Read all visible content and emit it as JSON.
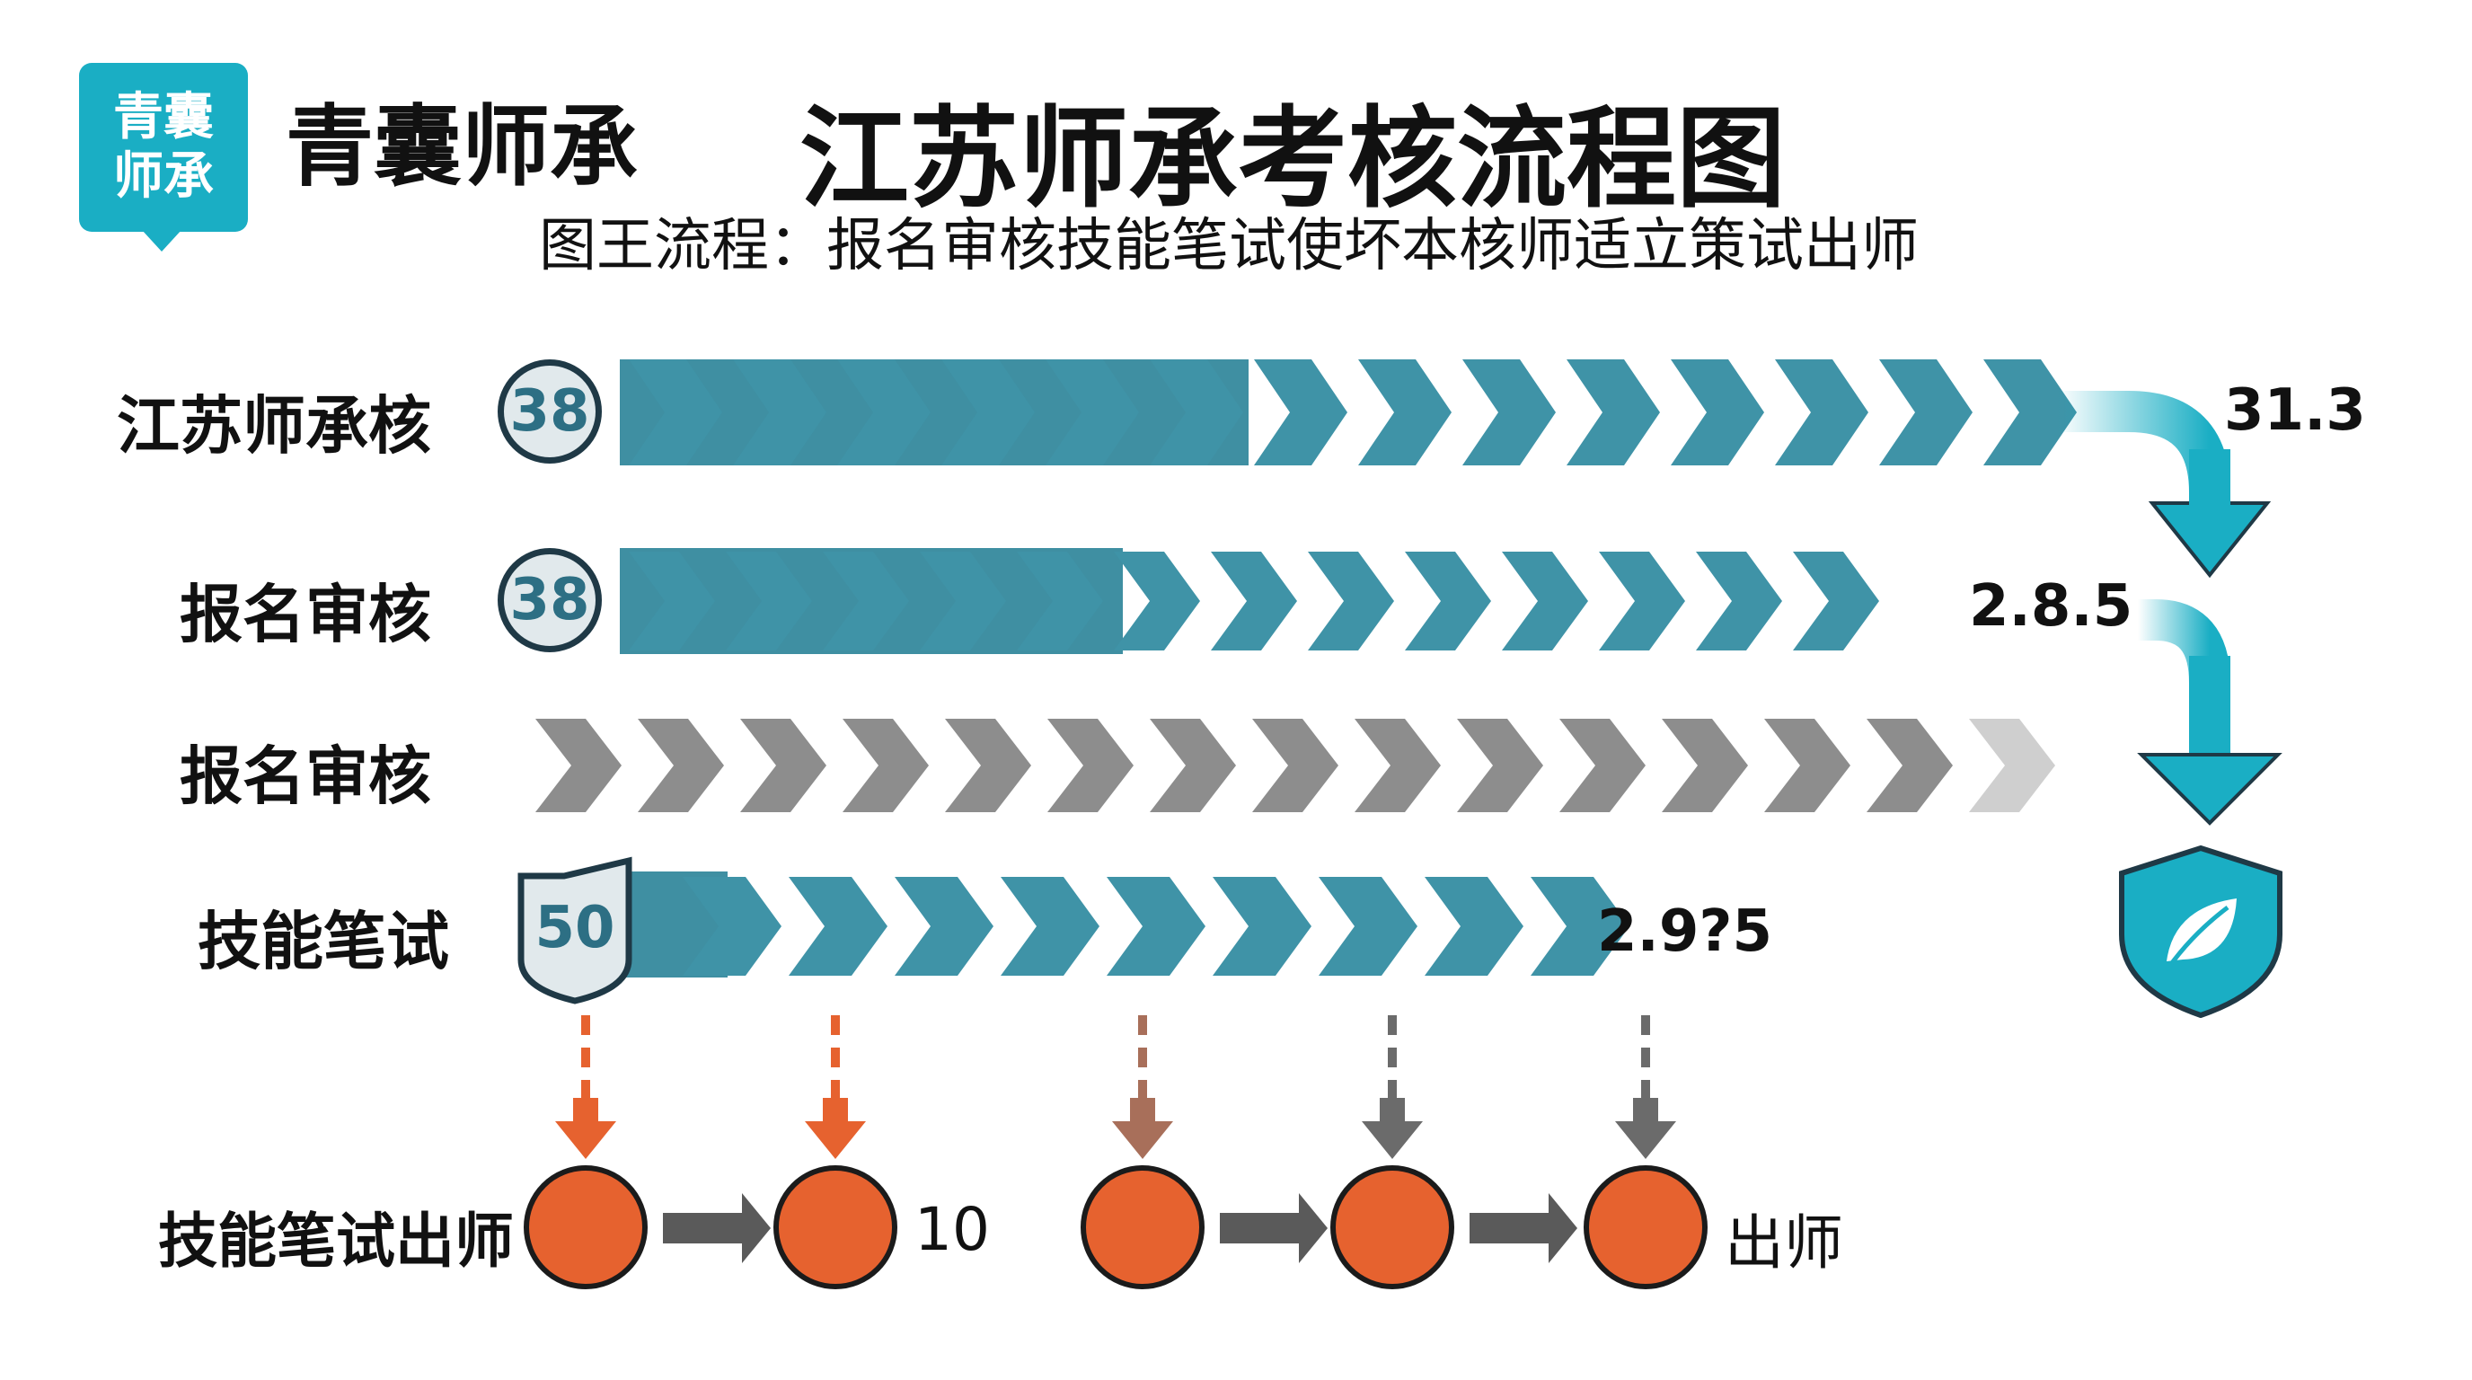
{
  "brand": {
    "logo_line1": "青囊",
    "logo_line2": "师承",
    "name": "青囊师承"
  },
  "header": {
    "title": "江苏师承考核流程图",
    "subtitle": "图王流程：报名审核技能笔试使坏本核师适立策试出师"
  },
  "rows": [
    {
      "label": "江苏师承核",
      "badge": "38",
      "value": "31.3",
      "chevrons": 14,
      "style": "teal"
    },
    {
      "label": "报名审核",
      "badge": "38",
      "value": "2.8.5",
      "chevrons": 13,
      "style": "teal"
    },
    {
      "label": "报名审核",
      "badge": "",
      "value": "",
      "chevrons": 15,
      "style": "grey"
    },
    {
      "label": "技能笔试",
      "badge": "50",
      "value": "2.9?5",
      "chevrons": 9,
      "style": "teal"
    }
  ],
  "bottom": {
    "label": "技能笔试出师",
    "number": "10",
    "end_label": "出师"
  },
  "icons": {
    "shield": "leaf-shield-icon",
    "down_arrow": "down-arrow-icon"
  },
  "colors": {
    "teal": "#3f93a7",
    "teal_dark": "#2b7b90",
    "cyan": "#1aaec4",
    "grey": "#8d8d8d",
    "orange": "#e6622f",
    "brown": "#a86f5a"
  }
}
